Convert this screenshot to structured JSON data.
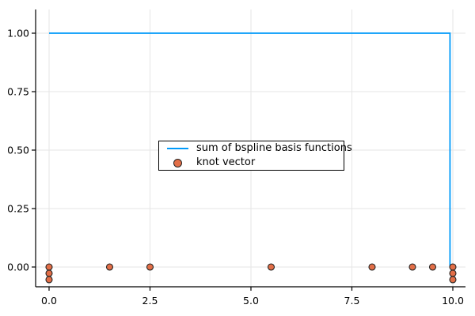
{
  "colors": {
    "background": "#ffffff",
    "grid": "#e6e6e6",
    "axis": "#000000",
    "text": "#000000",
    "legend_border": "#000000",
    "legend_background": "#ffffff",
    "line": "#009AFA",
    "marker_fill": "#E26E47",
    "marker_stroke": "#232323"
  },
  "chart_data": {
    "type": "line",
    "title": "",
    "xlabel": "",
    "ylabel": "",
    "grid": true,
    "legend_position": "center",
    "xlim": [
      -0.333,
      10.314
    ],
    "ylim": [
      -0.0845,
      1.1014
    ],
    "xticks": [
      {
        "value": 0.0,
        "label": "0.0"
      },
      {
        "value": 2.5,
        "label": "2.5"
      },
      {
        "value": 5.0,
        "label": "5.0"
      },
      {
        "value": 7.5,
        "label": "7.5"
      },
      {
        "value": 10.0,
        "label": "10.0"
      }
    ],
    "yticks": [
      {
        "value": 0.0,
        "label": "0.00"
      },
      {
        "value": 0.25,
        "label": "0.25"
      },
      {
        "value": 0.5,
        "label": "0.50"
      },
      {
        "value": 0.75,
        "label": "0.75"
      },
      {
        "value": 1.0,
        "label": "1.00"
      }
    ],
    "series": [
      {
        "name": "sum of bspline basis functions",
        "type": "line",
        "color": "#009AFA",
        "points": [
          [
            0,
            1
          ],
          [
            9.93,
            1
          ],
          [
            9.93,
            0
          ]
        ]
      },
      {
        "name": "knot vector",
        "type": "scatter",
        "color": "#E26E47",
        "stroke": "#232323",
        "knots": [
          0,
          0,
          0,
          1.5,
          2.5,
          5.5,
          8.0,
          9.0,
          9.5,
          10.0,
          10.0,
          10.0
        ],
        "points": [
          [
            0,
            0
          ],
          [
            0,
            -0.027
          ],
          [
            0,
            -0.054
          ],
          [
            1.5,
            0
          ],
          [
            2.5,
            0
          ],
          [
            5.5,
            0
          ],
          [
            8.0,
            0
          ],
          [
            9.0,
            0
          ],
          [
            9.5,
            0
          ],
          [
            10,
            0
          ],
          [
            10,
            -0.027
          ],
          [
            10,
            -0.054
          ]
        ]
      }
    ]
  }
}
